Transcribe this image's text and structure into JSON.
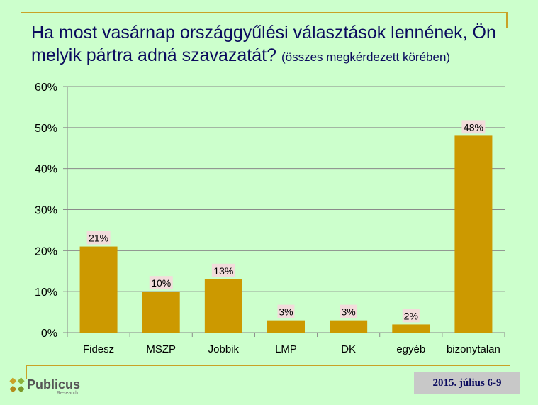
{
  "header": {
    "title_main": "Ha most vasárnap országgyűlési választások lennének, Ön melyik pártra adná szavazatát?",
    "title_sub": "(összes megkérdezett körében)"
  },
  "chart_data": {
    "type": "bar",
    "title": "Ha most vasárnap országgyűlési választások lennének, Ön melyik pártra adná szavazatát? (összes megkérdezett körében)",
    "categories": [
      "Fidesz",
      "MSZP",
      "Jobbik",
      "LMP",
      "DK",
      "egyéb",
      "bizonytalan"
    ],
    "values": [
      21,
      10,
      13,
      3,
      3,
      2,
      48
    ],
    "data_labels": [
      "21%",
      "10%",
      "13%",
      "3%",
      "3%",
      "2%",
      "48%"
    ],
    "yticks": [
      "0%",
      "10%",
      "20%",
      "30%",
      "40%",
      "50%",
      "60%"
    ],
    "ylim": [
      0,
      60
    ],
    "grid": true,
    "legend": "none",
    "bar_color": "#cc9900",
    "label_bg": "#f2dcdb"
  },
  "footer": {
    "logo_text": "Publicus",
    "logo_sub": "Research",
    "date": "2015. július 6-9"
  }
}
